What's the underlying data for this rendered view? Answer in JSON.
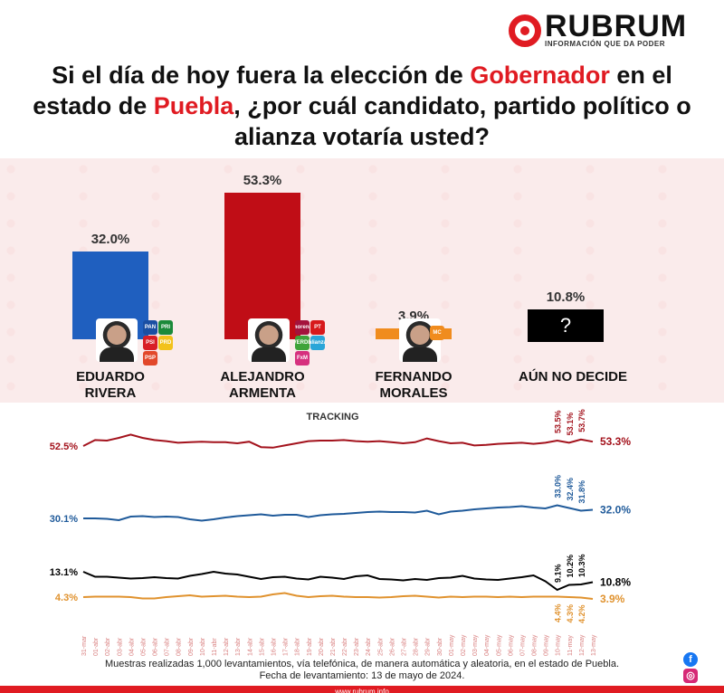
{
  "brand": {
    "name": "RUBRUM",
    "tagline": "INFORMACIÓN QUE DA PODER",
    "watermark": "RUBRUM",
    "website": "www.rubrum.info"
  },
  "title": {
    "part1": "Si el día de hoy fuera la elección de ",
    "highlight1": "Gobernador",
    "part2": " en el estado de ",
    "highlight2": "Puebla",
    "part3": ", ¿por cuál candidato, partido político o alianza votaría usted?"
  },
  "colors": {
    "red": "#c00d16",
    "blue": "#1f5fbf",
    "black": "#000000",
    "orange": "#f08c1e",
    "brand": "#e01b22"
  },
  "chart_data": [
    {
      "type": "bar",
      "categories": [
        "EDUARDO RIVERA",
        "ALEJANDRO ARMENTA",
        "FERNANDO MORALES",
        "AÚN NO DECIDE"
      ],
      "category_lines": [
        [
          "EDUARDO",
          "RIVERA"
        ],
        [
          "ALEJANDRO",
          "ARMENTA"
        ],
        [
          "FERNANDO",
          "MORALES"
        ],
        [
          "AÚN NO DECIDE",
          ""
        ]
      ],
      "values": [
        32.0,
        53.3,
        3.9,
        10.8
      ],
      "labels": [
        "32.0%",
        "53.3%",
        "3.9%",
        "10.8%"
      ],
      "colors": [
        "#1f5fbf",
        "#c00d16",
        "#f08c1e",
        "#000000"
      ],
      "party_logos": [
        [
          "PAN",
          "PRI",
          "PSI",
          "PRD",
          "PSP"
        ],
        [
          "morena",
          "PT",
          "VERDE",
          "alianza",
          "FxM"
        ],
        [
          "MC"
        ],
        []
      ],
      "ylim": [
        0,
        60
      ]
    },
    {
      "type": "line",
      "title": "TRACKING",
      "x": [
        "31-mar",
        "01-abr",
        "02-abr",
        "03-abr",
        "04-abr",
        "05-abr",
        "06-abr",
        "07-abr",
        "08-abr",
        "09-abr",
        "10-abr",
        "11-abr",
        "12-abr",
        "13-abr",
        "14-abr",
        "15-abr",
        "16-abr",
        "17-abr",
        "18-abr",
        "19-abr",
        "20-abr",
        "21-abr",
        "22-abr",
        "23-abr",
        "24-abr",
        "25-abr",
        "26-abr",
        "27-abr",
        "28-abr",
        "29-abr",
        "30-abr",
        "01-may",
        "02-may",
        "03-may",
        "04-may",
        "05-may",
        "06-may",
        "07-may",
        "08-may",
        "09-may",
        "10-may",
        "11-may",
        "12-may",
        "13-may"
      ],
      "series": [
        {
          "name": "ALEJANDRO ARMENTA",
          "color": "#a3121c",
          "start_label": "52.5%",
          "end_label": "53.3%",
          "point_labels": [
            "53.5%",
            "53.1%",
            "53.7%"
          ],
          "values": [
            52.5,
            53.6,
            53.5,
            54.0,
            54.6,
            54.0,
            53.6,
            53.4,
            53.1,
            53.2,
            53.3,
            53.2,
            53.2,
            53.0,
            53.3,
            52.3,
            52.2,
            52.6,
            53.0,
            53.4,
            53.5,
            53.5,
            53.6,
            53.4,
            53.3,
            53.4,
            53.2,
            53.0,
            53.2,
            53.9,
            53.4,
            53.0,
            53.1,
            52.6,
            52.7,
            52.9,
            53.0,
            53.1,
            52.9,
            53.1,
            53.5,
            53.1,
            53.7,
            53.3
          ]
        },
        {
          "name": "EDUARDO RIVERA",
          "color": "#1f5a9a",
          "start_label": "30.1%",
          "end_label": "32.0%",
          "point_labels": [
            "33.0%",
            "32.4%",
            "31.8%"
          ],
          "values": [
            30.1,
            30.1,
            30.0,
            29.7,
            30.5,
            30.6,
            30.4,
            30.5,
            30.4,
            29.9,
            29.6,
            29.9,
            30.3,
            30.6,
            30.8,
            31.0,
            30.7,
            30.9,
            30.9,
            30.4,
            30.8,
            31.0,
            31.1,
            31.3,
            31.5,
            31.6,
            31.5,
            31.5,
            31.4,
            31.8,
            31.0,
            31.6,
            31.8,
            32.1,
            32.3,
            32.5,
            32.6,
            32.8,
            32.5,
            32.3,
            33.0,
            32.4,
            31.8,
            32.0
          ]
        },
        {
          "name": "AÚN NO DECIDE",
          "color": "#000000",
          "start_label": "13.1%",
          "end_label": "10.8%",
          "point_labels": [
            "9.1%",
            "10.2%",
            "10.3%"
          ],
          "values": [
            13.1,
            12.0,
            12.0,
            11.8,
            11.6,
            11.7,
            11.9,
            11.7,
            11.6,
            12.2,
            12.6,
            13.1,
            12.7,
            12.5,
            12.0,
            11.5,
            11.9,
            12.0,
            11.6,
            11.4,
            12.0,
            11.8,
            11.5,
            12.1,
            12.3,
            11.5,
            11.4,
            11.2,
            11.5,
            11.3,
            11.7,
            11.8,
            12.2,
            11.6,
            11.4,
            11.3,
            11.6,
            11.9,
            12.3,
            11.0,
            9.1,
            10.2,
            10.3,
            10.8
          ]
        },
        {
          "name": "FERNANDO MORALES",
          "color": "#e0922e",
          "start_label": "4.3%",
          "end_label": "3.9%",
          "point_labels": [
            "4.4%",
            "4.3%",
            "4.2%"
          ],
          "values": [
            4.3,
            4.4,
            4.4,
            4.4,
            4.3,
            4.0,
            4.0,
            4.3,
            4.5,
            4.7,
            4.4,
            4.5,
            4.6,
            4.4,
            4.3,
            4.4,
            4.9,
            5.2,
            4.6,
            4.3,
            4.5,
            4.6,
            4.4,
            4.3,
            4.3,
            4.2,
            4.3,
            4.5,
            4.6,
            4.4,
            4.2,
            4.4,
            4.3,
            4.4,
            4.4,
            4.3,
            4.4,
            4.3,
            4.4,
            4.4,
            4.4,
            4.3,
            4.2,
            3.9
          ]
        }
      ]
    }
  ],
  "footer": {
    "line1": "Muestras realizadas 1,000 levantamientos, vía telefónica, de manera automática y aleatoria, en el estado de Puebla.",
    "line2": "Fecha de levantamiento: 13 de mayo de 2024."
  },
  "social": {
    "facebook": "f",
    "instagram": "◎"
  }
}
